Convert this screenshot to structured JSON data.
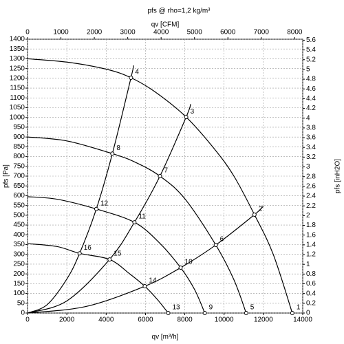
{
  "chart_data": {
    "type": "line",
    "title": "pfs @ rho=1,2 kg/m³",
    "xlabel": "qv [m³/h]",
    "x2label": "qv [CFM]",
    "ylabel": "pfs [Pa]",
    "y2label": "pfs [inH2O]",
    "xlim": [
      0,
      14000
    ],
    "xticks": [
      0,
      2000,
      4000,
      6000,
      8000,
      10000,
      12000,
      14000
    ],
    "x2lim": [
      0,
      8240
    ],
    "x2ticks": [
      0,
      1000,
      2000,
      3000,
      4000,
      5000,
      6000,
      7000,
      8000
    ],
    "ylim": [
      0,
      1400
    ],
    "yticks": [
      0,
      50,
      100,
      150,
      200,
      250,
      300,
      350,
      400,
      450,
      500,
      550,
      600,
      650,
      700,
      750,
      800,
      850,
      900,
      950,
      1000,
      1050,
      1100,
      1150,
      1200,
      1250,
      1300,
      1350,
      1400
    ],
    "y2lim": [
      0,
      5.62
    ],
    "y2ticks": [
      0,
      0.2,
      0.4,
      0.6,
      0.8,
      1,
      1.2,
      1.4,
      1.6,
      1.8,
      2,
      2.2,
      2.4,
      2.6,
      2.8,
      3,
      3.2,
      3.4,
      3.6,
      3.8,
      4,
      4.2,
      4.4,
      4.6,
      4.8,
      5,
      5.2,
      5.4,
      5.6
    ],
    "grid": true,
    "color": "#000000",
    "series": [
      {
        "x": [
          0,
          2000,
          4000,
          5263,
          6500,
          8070,
          9500,
          10500,
          11544,
          12500,
          13470
        ],
        "values": [
          1300,
          1283,
          1247,
          1203,
          1130,
          1002,
          840,
          700,
          503,
          300,
          0
        ]
      },
      {
        "x": [
          0,
          2000,
          4316,
          5500,
          6737,
          8000,
          9579,
          10500,
          11123
        ],
        "values": [
          900,
          880,
          815,
          770,
          700,
          585,
          348,
          170,
          0
        ]
      },
      {
        "x": [
          0,
          1500,
          3500,
          5439,
          6700,
          7789,
          8500,
          9018
        ],
        "values": [
          595,
          582,
          532,
          464,
          360,
          232,
          120,
          0
        ]
      },
      {
        "x": [
          0,
          1500,
          2650,
          4175,
          5200,
          5965,
          6600,
          7158
        ],
        "values": [
          355,
          340,
          305,
          274,
          200,
          137,
          70,
          0
        ]
      },
      {
        "x": [
          0,
          1000,
          2000,
          2650,
          3500,
          4316,
          5263,
          5400
        ],
        "values": [
          0,
          43,
          174,
          305,
          532,
          815,
          1203,
          1266
        ]
      },
      {
        "x": [
          0,
          2000,
          4175,
          5439,
          6737,
          8070,
          8300
        ],
        "values": [
          0,
          62,
          274,
          464,
          700,
          1002,
          1068
        ]
      },
      {
        "x": [
          0,
          3000,
          5965,
          7789,
          9579,
          11544,
          12000
        ],
        "values": [
          0,
          34,
          137,
          232,
          348,
          503,
          547
        ]
      }
    ],
    "points": {
      "labels": [
        "1",
        "2",
        "3",
        "4",
        "5",
        "6",
        "7",
        "8",
        "9",
        "10",
        "11",
        "12",
        "13",
        "14",
        "15",
        "16"
      ],
      "x": [
        13470,
        11544,
        8070,
        5263,
        11123,
        9579,
        6737,
        4316,
        9018,
        7789,
        5439,
        3500,
        7158,
        5965,
        4175,
        2650
      ],
      "y": [
        0,
        503,
        1002,
        1203,
        0,
        348,
        700,
        815,
        0,
        232,
        464,
        532,
        0,
        137,
        274,
        305
      ]
    }
  }
}
